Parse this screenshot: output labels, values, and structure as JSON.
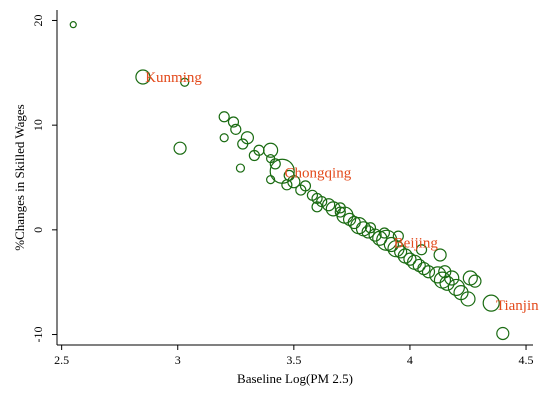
{
  "chart_data": {
    "type": "scatter",
    "xlabel": "Baseline Log(PM 2.5)",
    "ylabel": "%Changes in Skilled Wages",
    "xlim": [
      2.48,
      4.53
    ],
    "ylim": [
      -11,
      21
    ],
    "xticks": [
      2.5,
      3,
      3.5,
      4,
      4.5
    ],
    "yticks": [
      -10,
      0,
      10,
      20
    ],
    "grid": false,
    "marker": "hollow-circle",
    "colors": {
      "marker": "#1a6b12",
      "label": "#e34a1c",
      "axis": "#000000"
    },
    "points": [
      {
        "x": 2.55,
        "y": 19.6,
        "size": 3
      },
      {
        "x": 2.85,
        "y": 14.6,
        "size": 7
      },
      {
        "x": 3.03,
        "y": 14.1,
        "size": 4
      },
      {
        "x": 3.01,
        "y": 7.8,
        "size": 6
      },
      {
        "x": 3.2,
        "y": 10.8,
        "size": 5
      },
      {
        "x": 3.24,
        "y": 10.3,
        "size": 5
      },
      {
        "x": 3.25,
        "y": 9.6,
        "size": 5
      },
      {
        "x": 3.2,
        "y": 8.8,
        "size": 4
      },
      {
        "x": 3.3,
        "y": 8.8,
        "size": 6
      },
      {
        "x": 3.28,
        "y": 8.2,
        "size": 5
      },
      {
        "x": 3.35,
        "y": 7.6,
        "size": 5
      },
      {
        "x": 3.4,
        "y": 7.6,
        "size": 7
      },
      {
        "x": 3.33,
        "y": 7.1,
        "size": 5
      },
      {
        "x": 3.4,
        "y": 6.8,
        "size": 4
      },
      {
        "x": 3.42,
        "y": 6.3,
        "size": 5
      },
      {
        "x": 3.27,
        "y": 5.9,
        "size": 4
      },
      {
        "x": 3.45,
        "y": 5.6,
        "size": 12
      },
      {
        "x": 3.48,
        "y": 5.2,
        "size": 5
      },
      {
        "x": 3.5,
        "y": 4.6,
        "size": 6
      },
      {
        "x": 3.47,
        "y": 4.3,
        "size": 5
      },
      {
        "x": 3.4,
        "y": 4.8,
        "size": 4
      },
      {
        "x": 3.55,
        "y": 4.2,
        "size": 5
      },
      {
        "x": 3.53,
        "y": 3.8,
        "size": 5
      },
      {
        "x": 3.58,
        "y": 3.3,
        "size": 5
      },
      {
        "x": 3.6,
        "y": 3.0,
        "size": 5
      },
      {
        "x": 3.62,
        "y": 2.7,
        "size": 5
      },
      {
        "x": 3.6,
        "y": 2.2,
        "size": 5
      },
      {
        "x": 3.65,
        "y": 2.4,
        "size": 6
      },
      {
        "x": 3.67,
        "y": 2.0,
        "size": 7
      },
      {
        "x": 3.7,
        "y": 1.7,
        "size": 5
      },
      {
        "x": 3.72,
        "y": 1.4,
        "size": 8
      },
      {
        "x": 3.74,
        "y": 1.0,
        "size": 6
      },
      {
        "x": 3.76,
        "y": 0.7,
        "size": 6
      },
      {
        "x": 3.78,
        "y": 0.4,
        "size": 8
      },
      {
        "x": 3.8,
        "y": 0.1,
        "size": 7
      },
      {
        "x": 3.82,
        "y": -0.2,
        "size": 6
      },
      {
        "x": 3.85,
        "y": -0.5,
        "size": 6
      },
      {
        "x": 3.87,
        "y": -0.8,
        "size": 7
      },
      {
        "x": 3.9,
        "y": -1.0,
        "size": 10
      },
      {
        "x": 3.92,
        "y": -1.4,
        "size": 7
      },
      {
        "x": 3.94,
        "y": -1.8,
        "size": 8
      },
      {
        "x": 3.96,
        "y": -2.1,
        "size": 6
      },
      {
        "x": 3.98,
        "y": -2.5,
        "size": 7
      },
      {
        "x": 4.0,
        "y": -2.8,
        "size": 6
      },
      {
        "x": 4.02,
        "y": -3.1,
        "size": 7
      },
      {
        "x": 4.04,
        "y": -3.4,
        "size": 6
      },
      {
        "x": 4.06,
        "y": -3.7,
        "size": 6
      },
      {
        "x": 4.08,
        "y": -4.0,
        "size": 6
      },
      {
        "x": 4.13,
        "y": -2.4,
        "size": 6
      },
      {
        "x": 4.12,
        "y": -4.3,
        "size": 8
      },
      {
        "x": 4.15,
        "y": -4.0,
        "size": 6
      },
      {
        "x": 4.14,
        "y": -4.8,
        "size": 8
      },
      {
        "x": 4.16,
        "y": -5.1,
        "size": 7
      },
      {
        "x": 4.18,
        "y": -4.6,
        "size": 7
      },
      {
        "x": 4.2,
        "y": -5.5,
        "size": 8
      },
      {
        "x": 4.22,
        "y": -6.0,
        "size": 7
      },
      {
        "x": 4.26,
        "y": -4.6,
        "size": 7
      },
      {
        "x": 4.25,
        "y": -6.6,
        "size": 7
      },
      {
        "x": 4.28,
        "y": -4.9,
        "size": 6
      },
      {
        "x": 4.35,
        "y": -7.0,
        "size": 8
      },
      {
        "x": 4.4,
        "y": -9.9,
        "size": 6
      },
      {
        "x": 3.83,
        "y": 0.2,
        "size": 5
      },
      {
        "x": 3.95,
        "y": -0.6,
        "size": 5
      },
      {
        "x": 4.05,
        "y": -1.9,
        "size": 5
      },
      {
        "x": 3.7,
        "y": 2.1,
        "size": 5
      },
      {
        "x": 3.89,
        "y": -0.3,
        "size": 5
      }
    ],
    "annotations": [
      {
        "text": "Kunming",
        "x": 2.86,
        "y": 14.6
      },
      {
        "text": "Chongqing",
        "x": 3.46,
        "y": 5.5
      },
      {
        "text": "Beijing",
        "x": 3.93,
        "y": -1.2
      },
      {
        "text": "Tianjin",
        "x": 4.37,
        "y": -7.2
      }
    ]
  }
}
